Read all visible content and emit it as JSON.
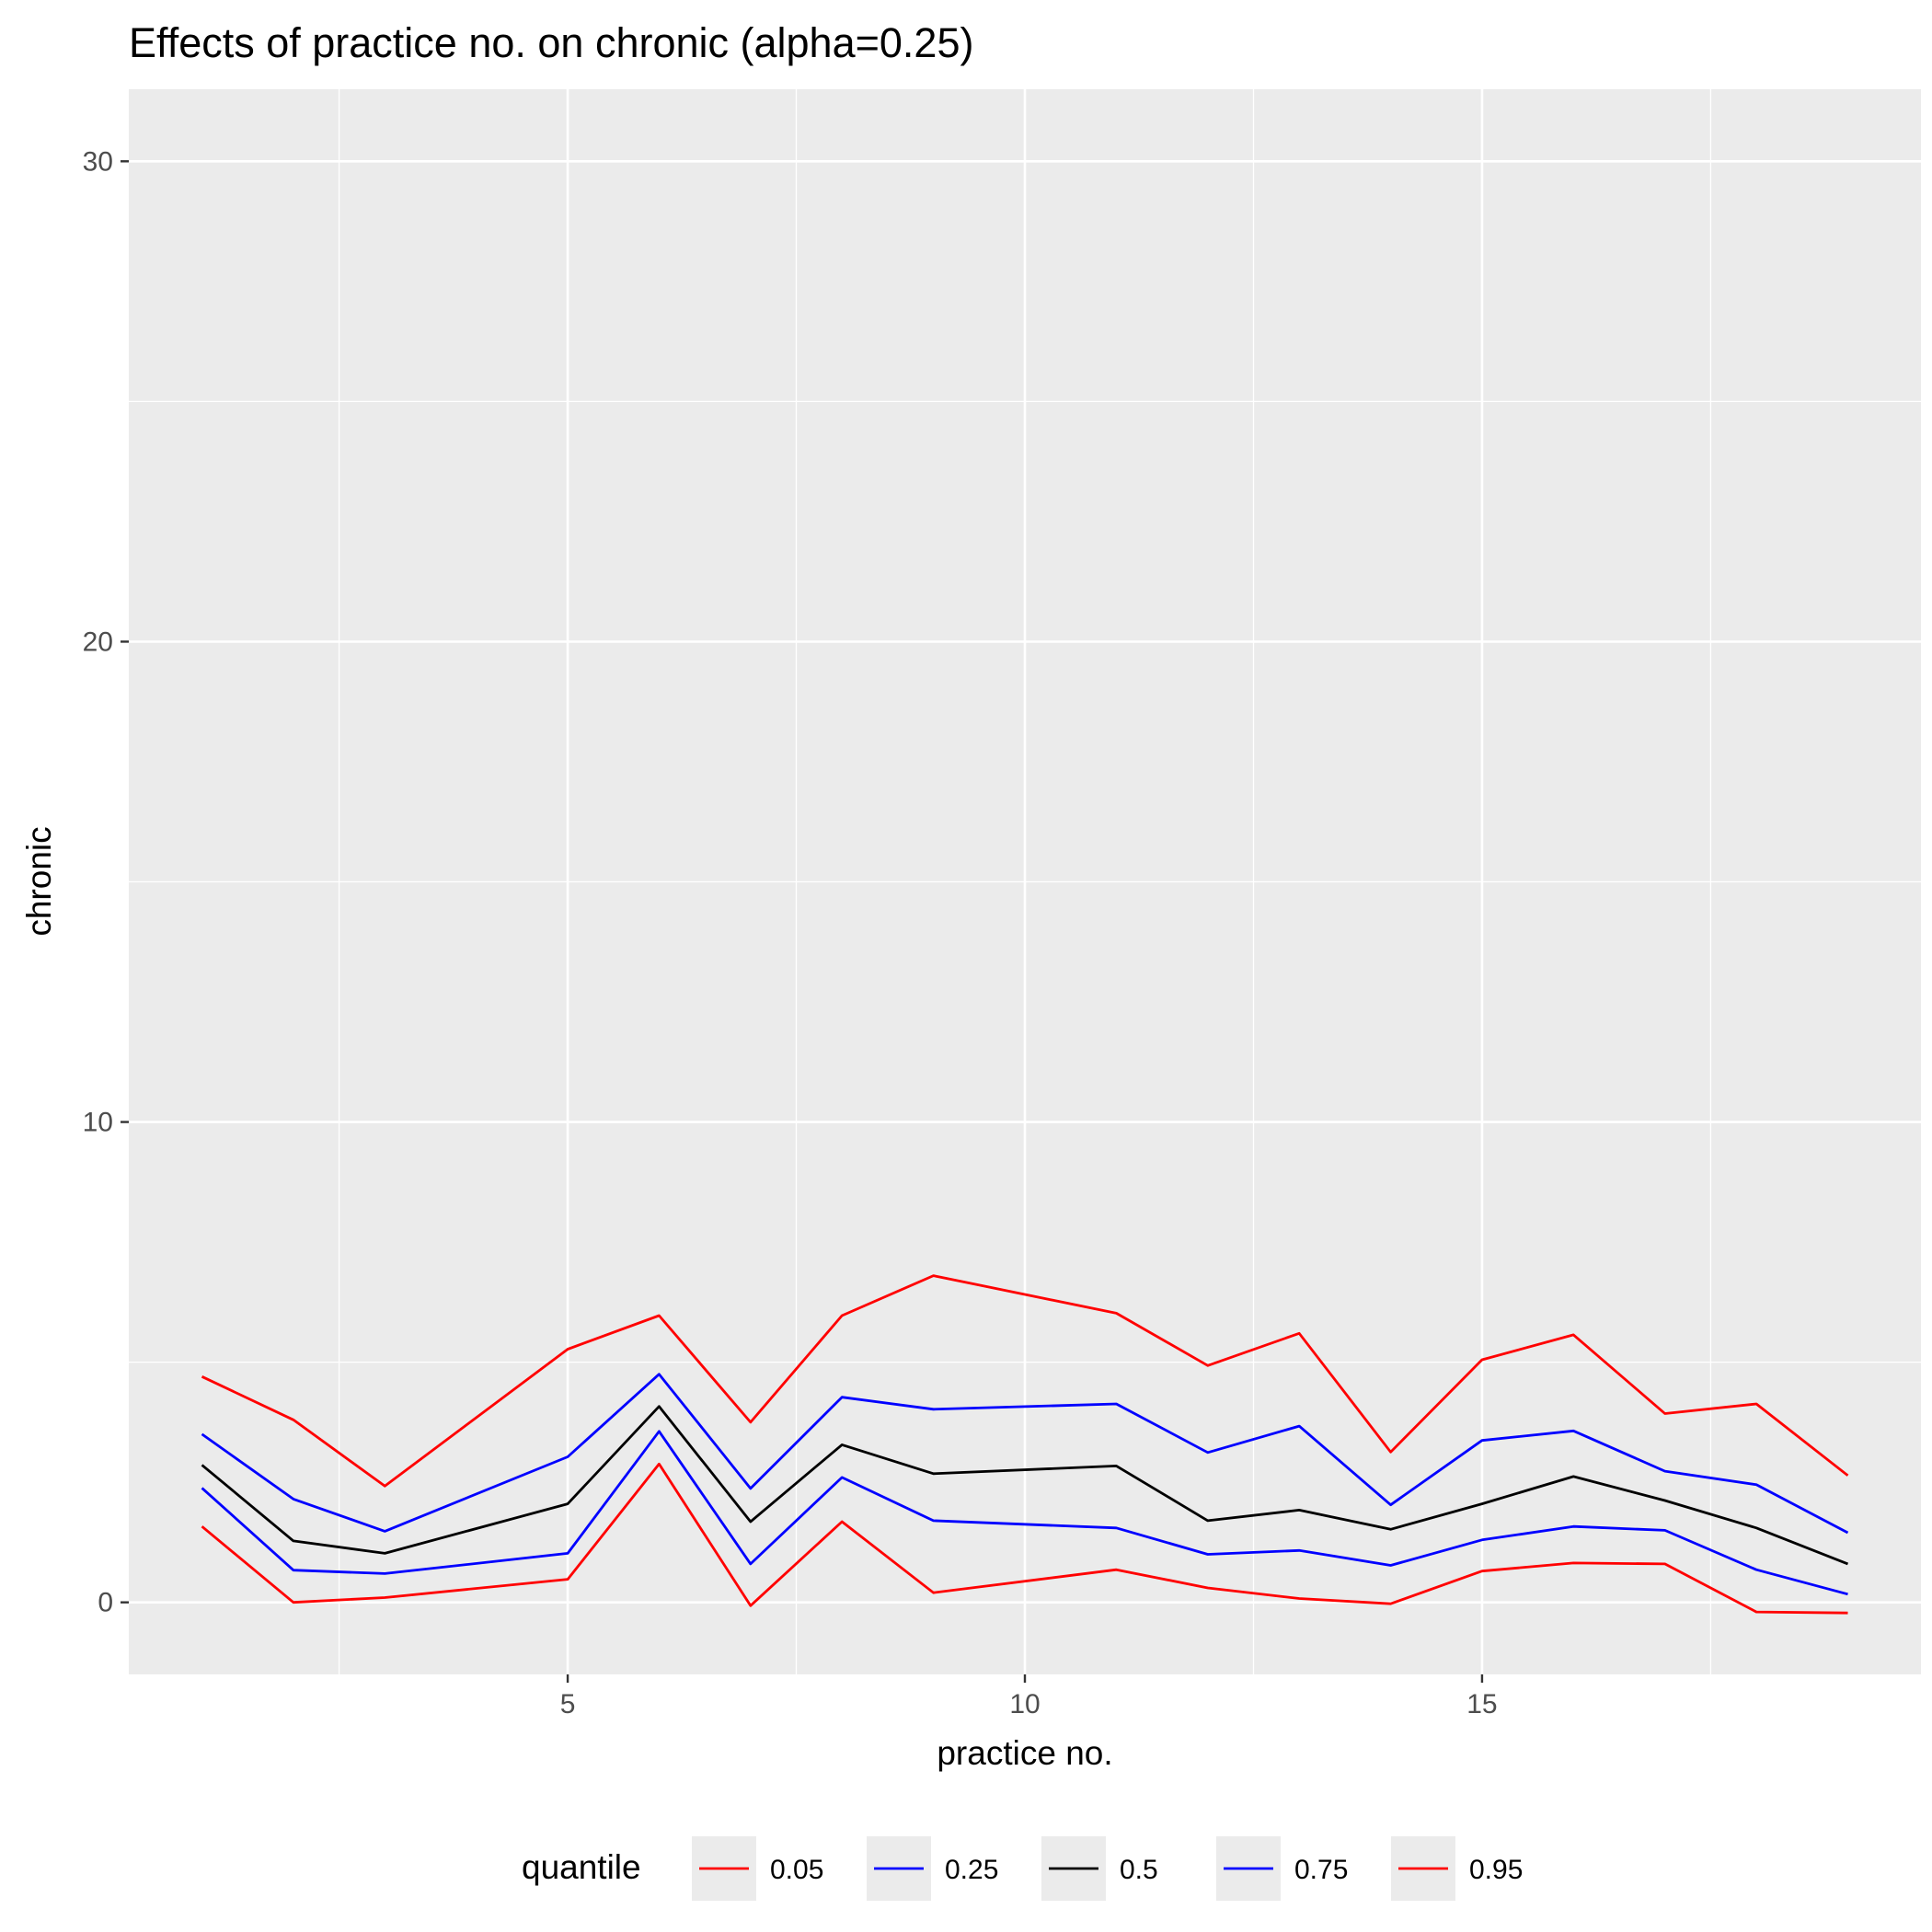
{
  "chart_data": {
    "type": "line",
    "title": "Effects of practice no. on chronic (alpha=0.25)",
    "xlabel": "practice no.",
    "ylabel": "chronic",
    "xlim": [
      0.2,
      19.8
    ],
    "ylim": [
      -1.5,
      31.5
    ],
    "x_ticks": [
      5,
      10,
      15
    ],
    "y_ticks": [
      0,
      10,
      20,
      30
    ],
    "grid": true,
    "legend": {
      "title": "quantile",
      "position": "bottom"
    },
    "x": [
      1,
      2,
      3,
      5,
      6,
      7,
      8,
      9,
      11,
      12,
      13,
      14,
      15,
      16,
      17,
      18,
      19
    ],
    "series": [
      {
        "name": "0.05",
        "color": "#ff0000",
        "values": [
          1.58,
          0.0,
          0.1,
          0.48,
          2.88,
          -0.07,
          1.68,
          0.2,
          0.68,
          0.3,
          0.08,
          -0.03,
          0.65,
          0.82,
          0.8,
          -0.2,
          -0.22
        ]
      },
      {
        "name": "0.25",
        "color": "#0000ff",
        "values": [
          2.38,
          0.67,
          0.6,
          1.02,
          3.56,
          0.8,
          2.6,
          1.7,
          1.55,
          1.0,
          1.08,
          0.77,
          1.3,
          1.58,
          1.5,
          0.68,
          0.17
        ]
      },
      {
        "name": "0.5",
        "color": "#000000",
        "values": [
          2.86,
          1.28,
          1.02,
          2.05,
          4.08,
          1.68,
          3.28,
          2.68,
          2.84,
          1.7,
          1.92,
          1.52,
          2.05,
          2.62,
          2.12,
          1.55,
          0.8
        ]
      },
      {
        "name": "0.75",
        "color": "#0000ff",
        "values": [
          3.5,
          2.15,
          1.48,
          3.03,
          4.75,
          2.37,
          4.27,
          4.02,
          4.13,
          3.12,
          3.67,
          2.03,
          3.37,
          3.57,
          2.73,
          2.45,
          1.45
        ]
      },
      {
        "name": "0.95",
        "color": "#ff0000",
        "values": [
          4.7,
          3.8,
          2.42,
          5.27,
          5.97,
          3.75,
          5.97,
          6.8,
          6.02,
          4.93,
          5.6,
          3.13,
          5.05,
          5.57,
          3.93,
          4.13,
          2.64
        ]
      }
    ]
  }
}
